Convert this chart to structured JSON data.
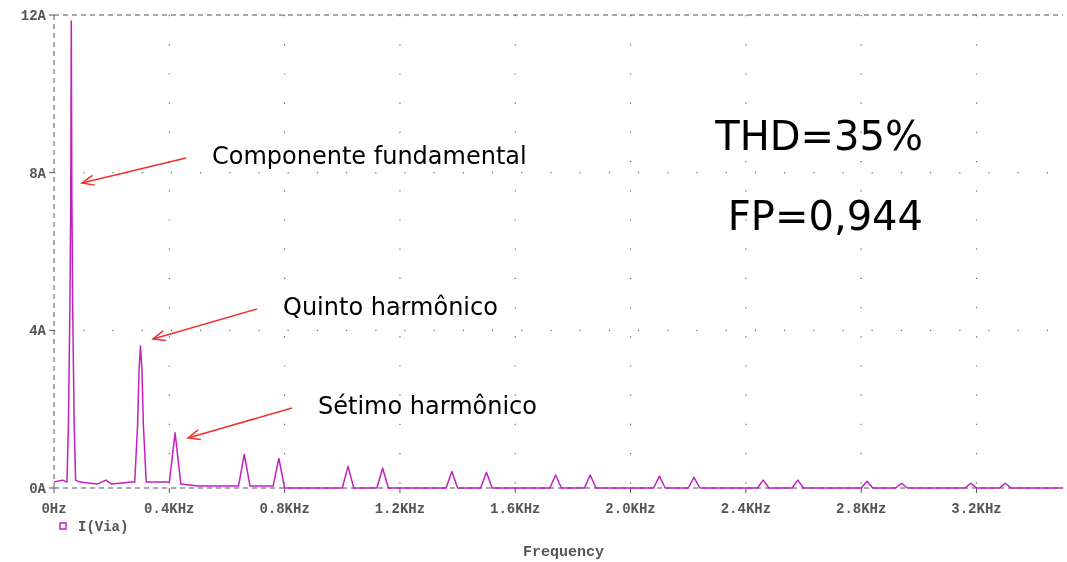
{
  "chart_data": {
    "type": "line",
    "xlabel": "Frequency",
    "x": [
      0,
      0.03,
      0.045,
      0.05,
      0.055,
      0.058,
      0.06,
      0.062,
      0.065,
      0.07,
      0.075,
      0.09,
      0.15,
      0.18,
      0.2,
      0.27,
      0.28,
      0.29,
      0.295,
      0.3,
      0.305,
      0.31,
      0.32,
      0.4,
      0.42,
      0.44,
      0.5,
      0.64,
      0.66,
      0.68,
      0.76,
      0.78,
      0.8,
      1.0,
      1.02,
      1.04,
      1.12,
      1.14,
      1.16,
      1.36,
      1.38,
      1.4,
      1.48,
      1.5,
      1.52,
      1.72,
      1.74,
      1.76,
      1.84,
      1.86,
      1.88,
      2.08,
      2.1,
      2.12,
      2.2,
      2.22,
      2.24,
      2.44,
      2.46,
      2.48,
      2.56,
      2.58,
      2.6,
      2.8,
      2.82,
      2.84,
      2.92,
      2.94,
      2.96,
      3.16,
      3.18,
      3.2,
      3.28,
      3.3,
      3.32,
      3.5
    ],
    "series": [
      {
        "name": "I(Via)",
        "color": "#c020c0",
        "values": [
          0.15,
          0.2,
          0.15,
          1.6,
          4.5,
          7.3,
          11.85,
          7.3,
          4.5,
          1.6,
          0.2,
          0.15,
          0.1,
          0.2,
          0.1,
          0.15,
          0.15,
          1.6,
          3,
          3.6,
          3,
          1.6,
          0.15,
          0.15,
          1.4,
          0.1,
          0.05,
          0.05,
          0.85,
          0.05,
          0.05,
          0.75,
          0,
          0,
          0.55,
          0,
          0,
          0.5,
          0,
          0,
          0.42,
          0,
          0,
          0.4,
          0,
          0,
          0.33,
          0,
          0,
          0.33,
          0,
          0,
          0.3,
          0,
          0,
          0.27,
          0,
          0,
          0.2,
          0,
          0,
          0.2,
          0,
          0,
          0.17,
          0,
          0,
          0.12,
          0,
          0,
          0.12,
          0,
          0,
          0.12,
          0,
          0
        ]
      }
    ],
    "xlim": [
      0,
      3.5
    ],
    "ylim": [
      0,
      12
    ],
    "xticks": [
      {
        "value": 0,
        "label": "0Hz"
      },
      {
        "value": 0.4,
        "label": "0.4KHz"
      },
      {
        "value": 0.8,
        "label": "0.8KHz"
      },
      {
        "value": 1.2,
        "label": "1.2KHz"
      },
      {
        "value": 1.6,
        "label": "1.6KHz"
      },
      {
        "value": 2.0,
        "label": "2.0KHz"
      },
      {
        "value": 2.4,
        "label": "2.4KHz"
      },
      {
        "value": 2.8,
        "label": "2.8KHz"
      },
      {
        "value": 3.2,
        "label": "3.2KHz"
      }
    ],
    "yticks": [
      {
        "value": 0,
        "label": "0A"
      },
      {
        "value": 4,
        "label": "4A"
      },
      {
        "value": 8,
        "label": "8A"
      },
      {
        "value": 12,
        "label": "12A"
      }
    ],
    "grid": true,
    "legend": "bottom left",
    "marker": "none",
    "line_style": "solid",
    "annotations": [
      "Componente fundamental",
      "Quinto harmônico",
      "Sétimo harmônico",
      "THD=35%",
      "FP=0,944"
    ]
  }
}
